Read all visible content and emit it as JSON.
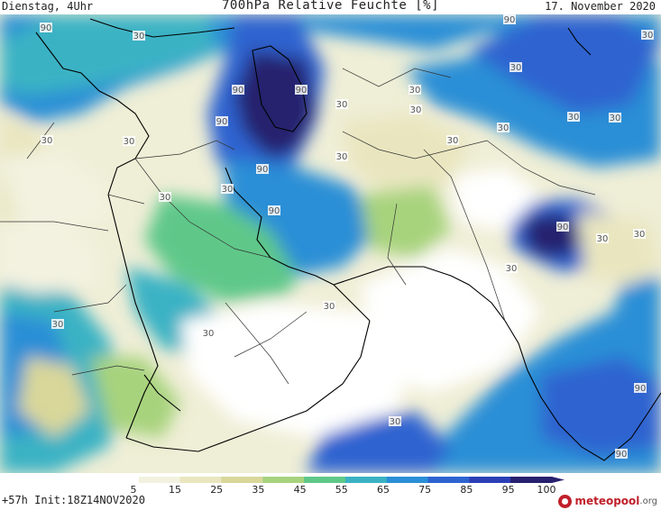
{
  "header": {
    "left": "Dienstag, 4Uhr",
    "title": "700hPa Relative Feuchte [%]",
    "right": "17. November 2020"
  },
  "footer": {
    "left": "+57h Init:18Z14NOV2020",
    "logo_main": "meteopool",
    "logo_suffix": ".org"
  },
  "legend": {
    "ticks": [
      "5",
      "15",
      "25",
      "35",
      "45",
      "55",
      "65",
      "75",
      "85",
      "95",
      "100"
    ],
    "colors": [
      "#ffffff",
      "#f3f2e0",
      "#e9e6bf",
      "#d9d79a",
      "#a7d37d",
      "#5fc889",
      "#3bb2c4",
      "#2a8fd6",
      "#2d63d0",
      "#2b3fb5",
      "#27206e"
    ]
  },
  "map_labels": [
    {
      "name": "contour-label",
      "text": "90"
    },
    {
      "name": "contour-label",
      "text": "30"
    },
    {
      "name": "contour-label",
      "text": "90"
    },
    {
      "name": "contour-label",
      "text": "30"
    },
    {
      "name": "contour-label",
      "text": "30"
    },
    {
      "name": "contour-label",
      "text": "90"
    },
    {
      "name": "contour-label",
      "text": "90"
    },
    {
      "name": "contour-label",
      "text": "30"
    },
    {
      "name": "contour-label",
      "text": "30"
    },
    {
      "name": "contour-label",
      "text": "30"
    },
    {
      "name": "contour-label",
      "text": "30"
    },
    {
      "name": "contour-label",
      "text": "90"
    },
    {
      "name": "contour-label",
      "text": "30"
    },
    {
      "name": "contour-label",
      "text": "90"
    },
    {
      "name": "contour-label",
      "text": "30"
    },
    {
      "name": "contour-label",
      "text": "90"
    },
    {
      "name": "contour-label",
      "text": "30"
    },
    {
      "name": "contour-label",
      "text": "30"
    },
    {
      "name": "contour-label",
      "text": "30"
    },
    {
      "name": "contour-label",
      "text": "30"
    },
    {
      "name": "contour-label",
      "text": "30"
    },
    {
      "name": "contour-label",
      "text": "30"
    },
    {
      "name": "contour-label",
      "text": "90"
    },
    {
      "name": "contour-label",
      "text": "30"
    },
    {
      "name": "contour-label",
      "text": "30"
    },
    {
      "name": "contour-label",
      "text": "30"
    },
    {
      "name": "contour-label",
      "text": "30"
    },
    {
      "name": "contour-label",
      "text": "30"
    },
    {
      "name": "contour-label",
      "text": "30"
    },
    {
      "name": "contour-label",
      "text": "90"
    },
    {
      "name": "contour-label",
      "text": "90"
    },
    {
      "name": "contour-label",
      "text": "30"
    }
  ]
}
